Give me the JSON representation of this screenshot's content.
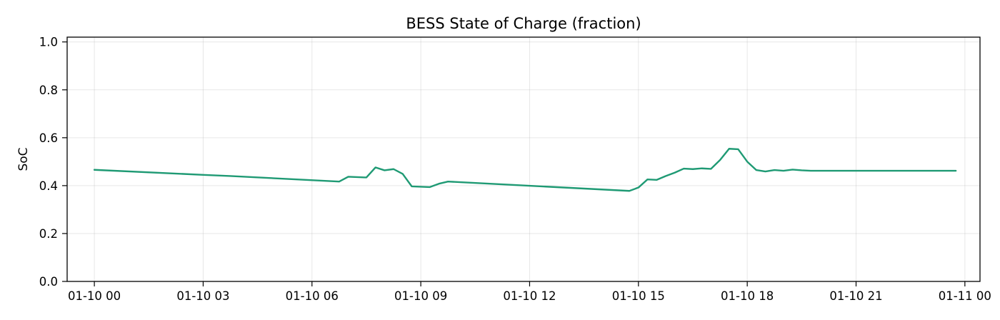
{
  "chart_data": {
    "type": "line",
    "title": "BESS State of Charge (fraction)",
    "xlabel": "",
    "ylabel": "SoC",
    "ylim": [
      0,
      1.02
    ],
    "xlim": [
      "2025-01-09 23:15",
      "2025-01-11 00:25"
    ],
    "grid": true,
    "legend": "none",
    "color": "#1f9a74",
    "x_ticks": [
      {
        "value": "2025-01-10 00:00",
        "label": "01-10 00"
      },
      {
        "value": "2025-01-10 03:00",
        "label": "01-10 03"
      },
      {
        "value": "2025-01-10 06:00",
        "label": "01-10 06"
      },
      {
        "value": "2025-01-10 09:00",
        "label": "01-10 09"
      },
      {
        "value": "2025-01-10 12:00",
        "label": "01-10 12"
      },
      {
        "value": "2025-01-10 15:00",
        "label": "01-10 15"
      },
      {
        "value": "2025-01-10 18:00",
        "label": "01-10 18"
      },
      {
        "value": "2025-01-10 21:00",
        "label": "01-10 21"
      },
      {
        "value": "2025-01-11 00:00",
        "label": "01-11 00"
      }
    ],
    "y_ticks": [
      {
        "value": 0.0,
        "label": "0.0"
      },
      {
        "value": 0.2,
        "label": "0.2"
      },
      {
        "value": 0.4,
        "label": "0.4"
      },
      {
        "value": 0.6,
        "label": "0.6"
      },
      {
        "value": 0.8,
        "label": "0.8"
      },
      {
        "value": 1.0,
        "label": "1.0"
      }
    ],
    "series": [
      {
        "points": [
          {
            "x": "2025-01-10 00:00",
            "y": 0.466
          },
          {
            "x": "2025-01-10 03:00",
            "y": 0.445
          },
          {
            "x": "2025-01-10 03:45",
            "y": 0.44
          },
          {
            "x": "2025-01-10 06:45",
            "y": 0.417
          },
          {
            "x": "2025-01-10 07:00",
            "y": 0.437
          },
          {
            "x": "2025-01-10 07:30",
            "y": 0.434
          },
          {
            "x": "2025-01-10 07:45",
            "y": 0.476
          },
          {
            "x": "2025-01-10 08:00",
            "y": 0.464
          },
          {
            "x": "2025-01-10 08:15",
            "y": 0.469
          },
          {
            "x": "2025-01-10 08:30",
            "y": 0.449
          },
          {
            "x": "2025-01-10 08:45",
            "y": 0.397
          },
          {
            "x": "2025-01-10 09:15",
            "y": 0.394
          },
          {
            "x": "2025-01-10 09:30",
            "y": 0.408
          },
          {
            "x": "2025-01-10 09:45",
            "y": 0.417
          },
          {
            "x": "2025-01-10 14:45",
            "y": 0.378
          },
          {
            "x": "2025-01-10 15:00",
            "y": 0.392
          },
          {
            "x": "2025-01-10 15:15",
            "y": 0.426
          },
          {
            "x": "2025-01-10 15:30",
            "y": 0.424
          },
          {
            "x": "2025-01-10 15:45",
            "y": 0.44
          },
          {
            "x": "2025-01-10 16:00",
            "y": 0.454
          },
          {
            "x": "2025-01-10 16:15",
            "y": 0.471
          },
          {
            "x": "2025-01-10 16:30",
            "y": 0.469
          },
          {
            "x": "2025-01-10 16:45",
            "y": 0.472
          },
          {
            "x": "2025-01-10 17:00",
            "y": 0.47
          },
          {
            "x": "2025-01-10 17:15",
            "y": 0.507
          },
          {
            "x": "2025-01-10 17:30",
            "y": 0.554
          },
          {
            "x": "2025-01-10 17:45",
            "y": 0.552
          },
          {
            "x": "2025-01-10 18:00",
            "y": 0.5
          },
          {
            "x": "2025-01-10 18:15",
            "y": 0.465
          },
          {
            "x": "2025-01-10 18:30",
            "y": 0.459
          },
          {
            "x": "2025-01-10 18:45",
            "y": 0.465
          },
          {
            "x": "2025-01-10 19:00",
            "y": 0.462
          },
          {
            "x": "2025-01-10 19:15",
            "y": 0.467
          },
          {
            "x": "2025-01-10 19:30",
            "y": 0.464
          },
          {
            "x": "2025-01-10 19:45",
            "y": 0.462
          },
          {
            "x": "2025-01-10 23:45",
            "y": 0.462
          }
        ]
      }
    ]
  }
}
